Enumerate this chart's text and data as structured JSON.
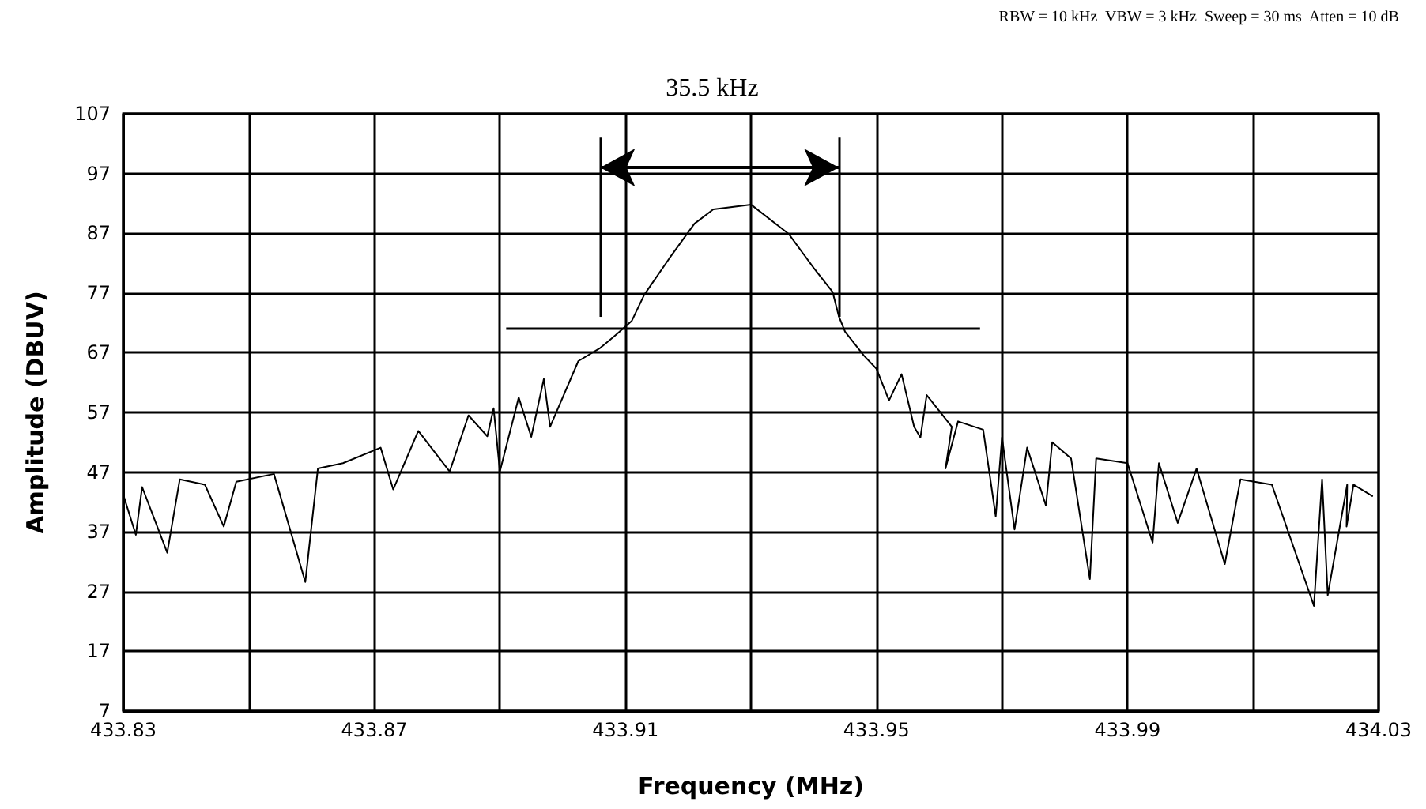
{
  "chart_data": {
    "type": "line",
    "xlabel": "Frequency (MHz)",
    "ylabel": "Amplitude (DBUV)",
    "annotations": [
      "RBW = 10 kHz  VBW = 3 kHz  Sweep = 30 ms  Atten = 10 dB",
      "35.5 kHz"
    ],
    "series": [
      {
        "color": "#000000",
        "x": [
          433.83,
          433.832,
          433.833,
          433.837,
          433.839,
          433.843,
          433.846,
          433.848,
          433.854,
          433.859,
          433.861,
          433.865,
          433.871,
          433.873,
          433.877,
          433.882,
          433.885,
          433.888,
          433.889,
          433.89,
          433.893,
          433.895,
          433.897,
          433.898,
          433.9025,
          433.906,
          433.9085,
          433.911,
          433.913,
          433.917,
          433.921,
          433.924,
          433.93,
          433.936,
          433.94,
          433.943,
          433.944,
          433.945,
          433.948,
          433.95,
          433.952,
          433.954,
          433.956,
          433.957,
          433.958,
          433.962,
          433.961,
          433.963,
          433.967,
          433.969,
          433.97,
          433.972,
          433.974,
          433.977,
          433.978,
          433.981,
          433.984,
          433.985,
          433.99,
          433.994,
          433.995,
          433.998,
          434.001,
          434.0055,
          434.008,
          434.013,
          434.0197,
          434.021,
          434.0219,
          434.025,
          434.0249,
          434.026,
          434.029
        ],
        "values": [
          43.2,
          36.5,
          44.5,
          33.5,
          45.8,
          44.9,
          37.9,
          45.4,
          46.7,
          28.6,
          47.6,
          48.5,
          51.1,
          44.1,
          53.9,
          47.1,
          56.5,
          53.0,
          57.7,
          47.1,
          59.5,
          52.9,
          62.6,
          54.6,
          65.6,
          67.8,
          70.0,
          72.3,
          76.7,
          82.8,
          88.6,
          91.0,
          91.8,
          86.9,
          81.2,
          77.2,
          73.1,
          70.5,
          66.5,
          64.3,
          59.0,
          63.4,
          54.6,
          52.8,
          59.9,
          54.6,
          47.6,
          55.5,
          54.1,
          39.6,
          52.8,
          37.4,
          51.1,
          41.4,
          52.0,
          49.3,
          29.1,
          49.3,
          48.5,
          35.2,
          48.5,
          38.5,
          47.6,
          31.6,
          45.8,
          44.9,
          24.6,
          45.8,
          26.4,
          44.9,
          37.9,
          44.9,
          43.0
        ]
      }
    ],
    "ref_lines": [
      {
        "axis": "y",
        "value": 71,
        "label": null
      },
      {
        "axis": "x",
        "value": 433.906,
        "label": null
      },
      {
        "axis": "x",
        "value": 433.944,
        "label": null
      }
    ],
    "xlim": [
      433.83,
      434.03
    ],
    "ylim": [
      7,
      107
    ],
    "xticks": [
      433.83,
      {
        "value": 433.85,
        "label": null
      },
      433.87,
      {
        "value": 433.89,
        "label": null
      },
      433.91,
      {
        "value": 433.93,
        "label": null
      },
      433.95,
      {
        "value": 433.97,
        "label": null
      },
      433.99,
      {
        "value": 434.01,
        "label": null
      },
      434.03
    ],
    "yticks": [
      7,
      17,
      27,
      37,
      47,
      57,
      67,
      77,
      87,
      97,
      107
    ],
    "grid": true,
    "marker": "none",
    "line_style": "solid"
  }
}
